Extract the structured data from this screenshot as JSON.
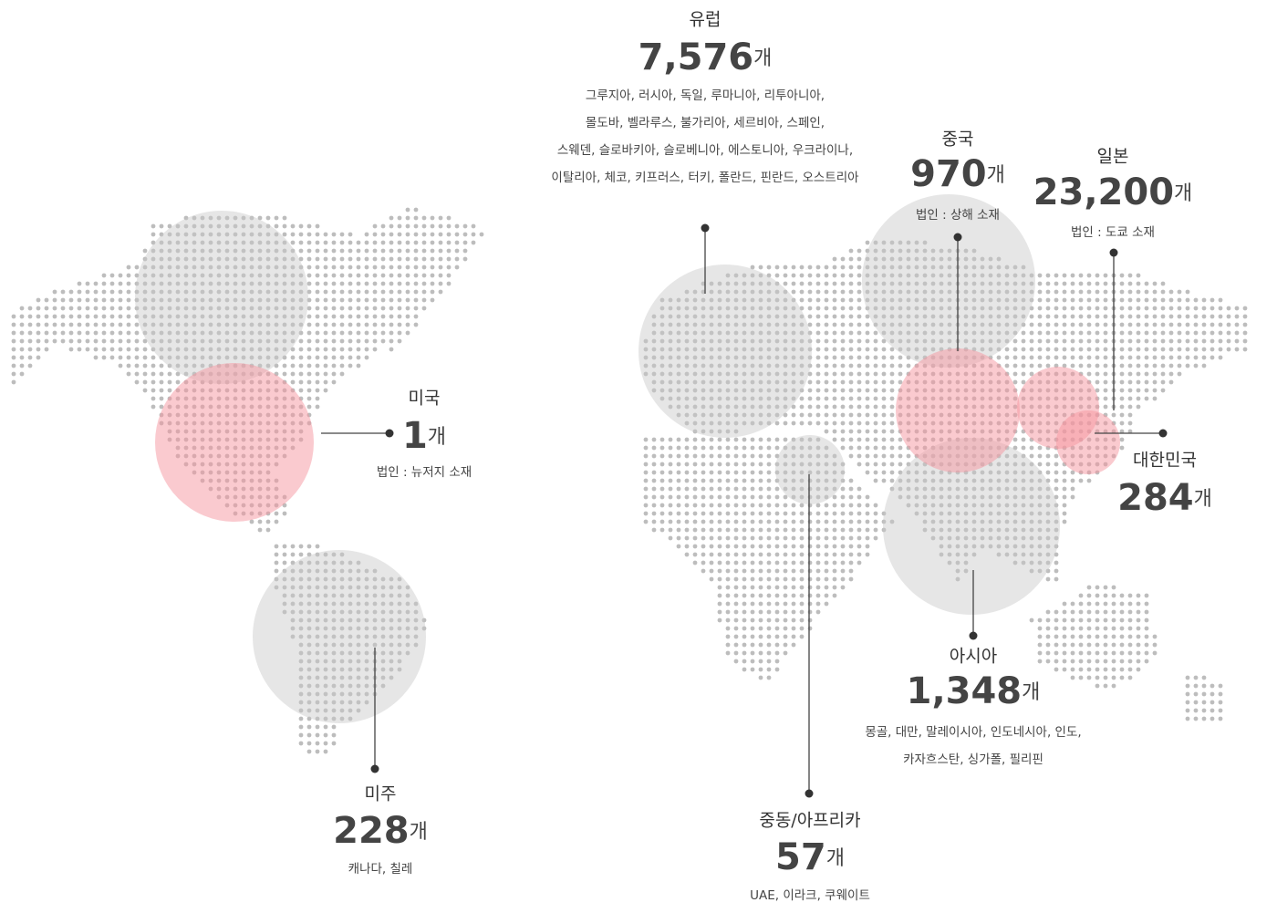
{
  "regions": [
    {
      "name": "유럽",
      "count": "7,576",
      "unit": "개",
      "details": [
        "그루지아, 러시아, 독일, 루마니아, 리투아니아,",
        "몰도바, 벨라루스, 불가리아, 세르비아, 스페인,",
        "스웨덴, 슬로바키아, 슬로베니아, 에스토니아, 우크라이나,",
        "이탈리아, 체코, 키프러스, 터키, 폴란드, 핀란드, 오스트리아"
      ]
    },
    {
      "name": "중국",
      "count": "970",
      "unit": "개",
      "details": [
        "법인 : 상해 소재"
      ]
    },
    {
      "name": "일본",
      "count": "23,200",
      "unit": "개",
      "details": [
        "법인 : 도쿄 소재"
      ]
    },
    {
      "name": "미국",
      "count": "1",
      "unit": "개",
      "details": [
        "법인 : 뉴저지 소재"
      ]
    },
    {
      "name": "대한민국",
      "count": "284",
      "unit": "개"
    },
    {
      "name": "아시아",
      "count": "1,348",
      "unit": "개",
      "details": [
        "몽골, 대만, 말레이시아, 인도네시아, 인도,",
        "카자흐스탄, 싱가폴, 필리핀"
      ]
    },
    {
      "name": "미주",
      "count": "228",
      "unit": "개",
      "details": [
        "캐나다, 칠레"
      ]
    },
    {
      "name": "중동/아프리카",
      "count": "57",
      "unit": "개",
      "details": [
        "UAE, 이라크, 쿠웨이트"
      ]
    }
  ]
}
